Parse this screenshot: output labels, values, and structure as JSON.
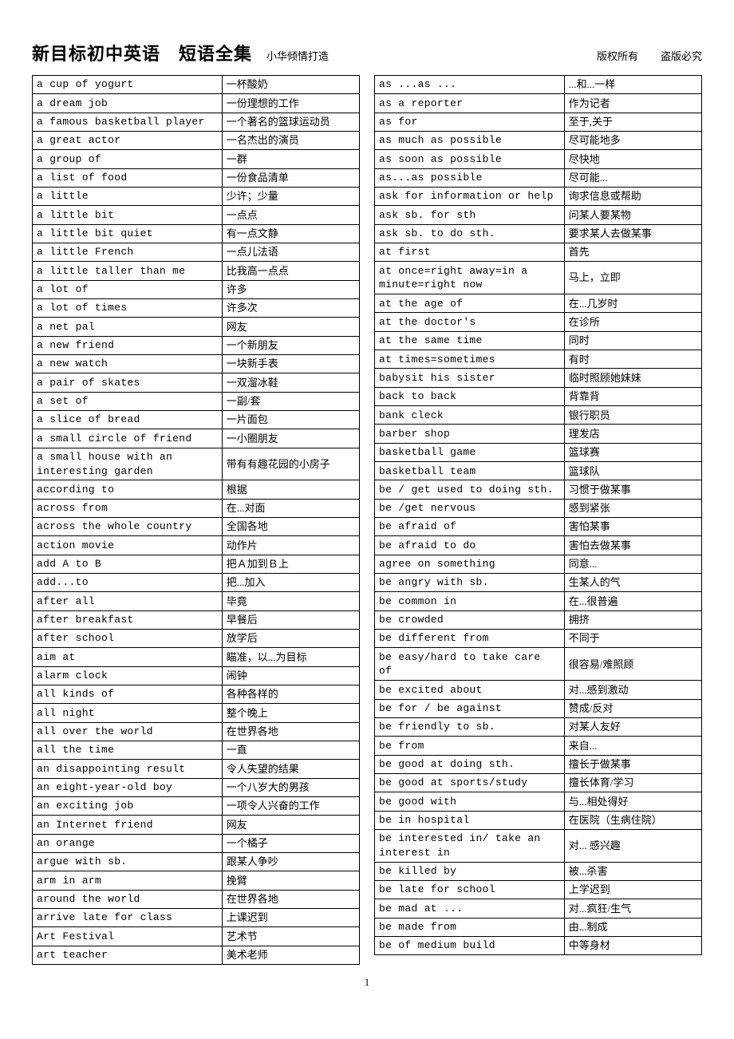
{
  "header": {
    "title_main": "新目标初中英语　短语全集",
    "title_sub": "小华倾情打造",
    "copyright": "版权所有",
    "piracy": "盗版必究"
  },
  "page_number": "1",
  "table_style": {
    "border_color": "#000000",
    "en_font": "Courier New",
    "zh_font": "SimSun",
    "font_size_pt": 10,
    "en_col_width_pct": 58,
    "zh_col_width_pct": 42
  },
  "left_rows": [
    {
      "en": "a cup of yogurt",
      "zh": "一杯酸奶"
    },
    {
      "en": "a dream job",
      "zh": "一份理想的工作"
    },
    {
      "en": "a famous basketball player",
      "zh": "一个著名的篮球运动员"
    },
    {
      "en": "a great actor",
      "zh": "一名杰出的演员"
    },
    {
      "en": "a group of",
      "zh": "一群"
    },
    {
      "en": "a list of food",
      "zh": "一份食品清单"
    },
    {
      "en": "a little",
      "zh": "少许；少量"
    },
    {
      "en": "a little bit",
      "zh": "一点点"
    },
    {
      "en": "a little bit quiet",
      "zh": "有一点文静"
    },
    {
      "en": "a little French",
      "zh": "一点儿法语"
    },
    {
      "en": "a little taller than me",
      "zh": "比我高一点点"
    },
    {
      "en": "a lot of",
      "zh": "许多"
    },
    {
      "en": "a lot of times",
      "zh": "许多次"
    },
    {
      "en": "a net pal",
      "zh": "网友"
    },
    {
      "en": "a new friend",
      "zh": "一个新朋友"
    },
    {
      "en": "a new watch",
      "zh": "一块新手表"
    },
    {
      "en": "a pair of skates",
      "zh": "一双溜冰鞋"
    },
    {
      "en": "a set of",
      "zh": "一副/套"
    },
    {
      "en": "a slice of bread",
      "zh": "一片面包"
    },
    {
      "en": "a small circle of friend",
      "zh": "一小圈朋友"
    },
    {
      "en": "a small house with an interesting garden",
      "zh": "带有有趣花园的小房子"
    },
    {
      "en": "according to",
      "zh": "根据"
    },
    {
      "en": "across from",
      "zh": "在...对面"
    },
    {
      "en": "across the whole country",
      "zh": "全国各地"
    },
    {
      "en": "action movie",
      "zh": "动作片"
    },
    {
      "en": "add A to B",
      "zh": "把Ａ加到Ｂ上"
    },
    {
      "en": "add...to",
      "zh": "把...加入"
    },
    {
      "en": "after all",
      "zh": "毕竟"
    },
    {
      "en": "after breakfast",
      "zh": "早餐后"
    },
    {
      "en": "after school",
      "zh": "放学后"
    },
    {
      "en": "aim at",
      "zh": "瞄准，以...为目标"
    },
    {
      "en": "alarm clock",
      "zh": "闹钟"
    },
    {
      "en": "all kinds of",
      "zh": "各种各样的"
    },
    {
      "en": "all night",
      "zh": "整个晚上"
    },
    {
      "en": "all over the world",
      "zh": "在世界各地"
    },
    {
      "en": "all the time",
      "zh": "一直"
    },
    {
      "en": "an disappointing result",
      "zh": "令人失望的结果"
    },
    {
      "en": "an eight-year-old boy",
      "zh": "一个八岁大的男孩"
    },
    {
      "en": "an exciting job",
      "zh": "一项令人兴奋的工作"
    },
    {
      "en": "an Internet friend",
      "zh": "网友"
    },
    {
      "en": "an orange",
      "zh": "一个橘子"
    },
    {
      "en": "argue with sb.",
      "zh": "跟某人争吵"
    },
    {
      "en": "arm in arm",
      "zh": "挽臂"
    },
    {
      "en": "around the world",
      "zh": "在世界各地"
    },
    {
      "en": "arrive late for class",
      "zh": "上课迟到"
    },
    {
      "en": "Art Festival",
      "zh": "艺术节"
    },
    {
      "en": "art teacher",
      "zh": "美术老师"
    }
  ],
  "right_rows": [
    {
      "en": "as ...as ...",
      "zh": "...和...一样"
    },
    {
      "en": "as a reporter",
      "zh": "作为记者"
    },
    {
      "en": "as for",
      "zh": "至于,关于"
    },
    {
      "en": "as much as possible",
      "zh": "尽可能地多"
    },
    {
      "en": "as soon as possible",
      "zh": "尽快地"
    },
    {
      "en": "as...as possible",
      "zh": "尽可能..."
    },
    {
      "en": "ask for information or help",
      "zh": "询求信息或帮助"
    },
    {
      "en": "ask sb. for sth",
      "zh": "问某人要某物"
    },
    {
      "en": "ask sb. to do sth.",
      "zh": "要求某人去做某事"
    },
    {
      "en": "at first",
      "zh": "首先"
    },
    {
      "en": "at once=right away=in a minute=right now",
      "zh": "马上，立即"
    },
    {
      "en": "at the age of",
      "zh": "在...几岁时"
    },
    {
      "en": "at the doctor's",
      "zh": "在诊所"
    },
    {
      "en": "at the same time",
      "zh": "同时"
    },
    {
      "en": "at times=sometimes",
      "zh": "有时"
    },
    {
      "en": "babysit his sister",
      "zh": "临时照顾她妹妹"
    },
    {
      "en": "back to back",
      "zh": "背靠背"
    },
    {
      "en": "bank cleck",
      "zh": "银行职员"
    },
    {
      "en": "barber shop",
      "zh": "理发店"
    },
    {
      "en": "basketball game",
      "zh": "篮球赛"
    },
    {
      "en": "basketball team",
      "zh": "篮球队"
    },
    {
      "en": "be / get used to doing sth.",
      "zh": "习惯于做某事"
    },
    {
      "en": "be /get nervous",
      "zh": "感到紧张"
    },
    {
      "en": "be afraid of",
      "zh": "害怕某事"
    },
    {
      "en": "be afraid to do",
      "zh": "害怕去做某事"
    },
    {
      "en": "agree on something",
      "zh": "同意..."
    },
    {
      "en": "be angry with sb.",
      "zh": "生某人的气"
    },
    {
      "en": "be common in",
      "zh": "在...很普遍"
    },
    {
      "en": "be crowded",
      "zh": "拥挤"
    },
    {
      "en": "be different from",
      "zh": "不同于"
    },
    {
      "en": "be easy/hard to take care of",
      "zh": "很容易/难照顾"
    },
    {
      "en": "be excited about",
      "zh": "对...感到激动"
    },
    {
      "en": "be for / be against",
      "zh": "赞成/反对"
    },
    {
      "en": "be friendly to sb.",
      "zh": "对某人友好"
    },
    {
      "en": "be from",
      "zh": "来自..."
    },
    {
      "en": "be good at doing sth.",
      "zh": "擅长于做某事"
    },
    {
      "en": "be good at sports/study",
      "zh": "擅长体育/学习"
    },
    {
      "en": "be good with",
      "zh": "与...相处得好"
    },
    {
      "en": "be in hospital",
      "zh": "在医院（生病住院）"
    },
    {
      "en": "be interested in/ take an interest in",
      "zh": "对... 感兴趣"
    },
    {
      "en": "be killed by",
      "zh": "被...杀害"
    },
    {
      "en": "be late for school",
      "zh": "上学迟到"
    },
    {
      "en": "be mad at ...",
      "zh": "对...疯狂/生气"
    },
    {
      "en": "be made from",
      "zh": "由...制成"
    },
    {
      "en": "be of medium build",
      "zh": "中等身材"
    }
  ]
}
